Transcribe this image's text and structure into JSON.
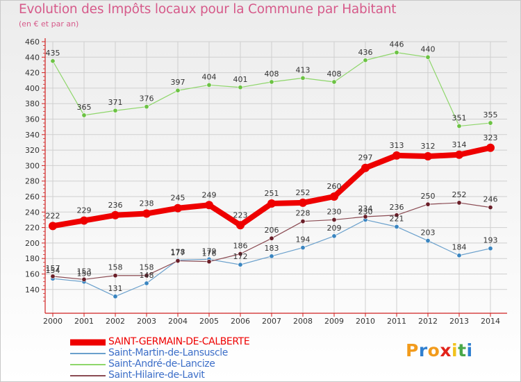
{
  "title": "Evolution des Impôts locaux pour la Commune par Habitant",
  "subtitle": "(en € et par an)",
  "logo_text": "Proxiti",
  "colors": {
    "title": "#d65a8a",
    "axis": "#d02020",
    "grid": "#cfcfcf"
  },
  "chart_data": {
    "type": "line",
    "title": "Evolution des Impôts locaux pour la Commune par Habitant",
    "ylabel": "(en € et par an)",
    "xlabel": "",
    "ylim": [
      120,
      460
    ],
    "yticks": [
      140,
      160,
      180,
      200,
      220,
      240,
      260,
      280,
      300,
      320,
      340,
      360,
      380,
      400,
      420,
      440,
      460
    ],
    "grid": true,
    "legend_position": "bottom-left",
    "x": [
      "2000",
      "2001",
      "2002",
      "2003",
      "2004",
      "2005",
      "2006",
      "2007",
      "2008",
      "2009",
      "2010",
      "2011",
      "2012",
      "2013",
      "2014"
    ],
    "series": [
      {
        "name": "Saint-Martin-de-Lansuscle",
        "color": "#6aa0cc",
        "marker": "#3a85c0",
        "width": 1.2,
        "values": [
          154,
          150,
          131,
          148,
          178,
          179,
          172,
          183,
          194,
          209,
          230,
          221,
          203,
          184,
          193
        ]
      },
      {
        "name": "Saint-André-de-Lancize",
        "color": "#8ed66a",
        "marker": "#6cc244",
        "width": 1.2,
        "values": [
          435,
          365,
          371,
          376,
          397,
          404,
          401,
          408,
          413,
          408,
          436,
          446,
          440,
          351,
          355
        ]
      },
      {
        "name": "Saint-Hilaire-de-Lavit",
        "color": "#8a4a52",
        "marker": "#6a1e28",
        "width": 1.2,
        "values": [
          157,
          153,
          158,
          158,
          177,
          176,
          186,
          206,
          228,
          230,
          234,
          236,
          250,
          252,
          246
        ]
      },
      {
        "name": "SAINT-GERMAIN-DE-CALBERTE",
        "color": "#ee0000",
        "marker": "#ee0000",
        "width": 8,
        "values": [
          222,
          229,
          236,
          238,
          245,
          249,
          223,
          251,
          252,
          260,
          297,
          313,
          312,
          314,
          323
        ]
      }
    ],
    "legend": [
      "SAINT-GERMAIN-DE-CALBERTE",
      "Saint-Martin-de-Lansuscle",
      "Saint-André-de-Lancize",
      "Saint-Hilaire-de-Lavit"
    ]
  }
}
